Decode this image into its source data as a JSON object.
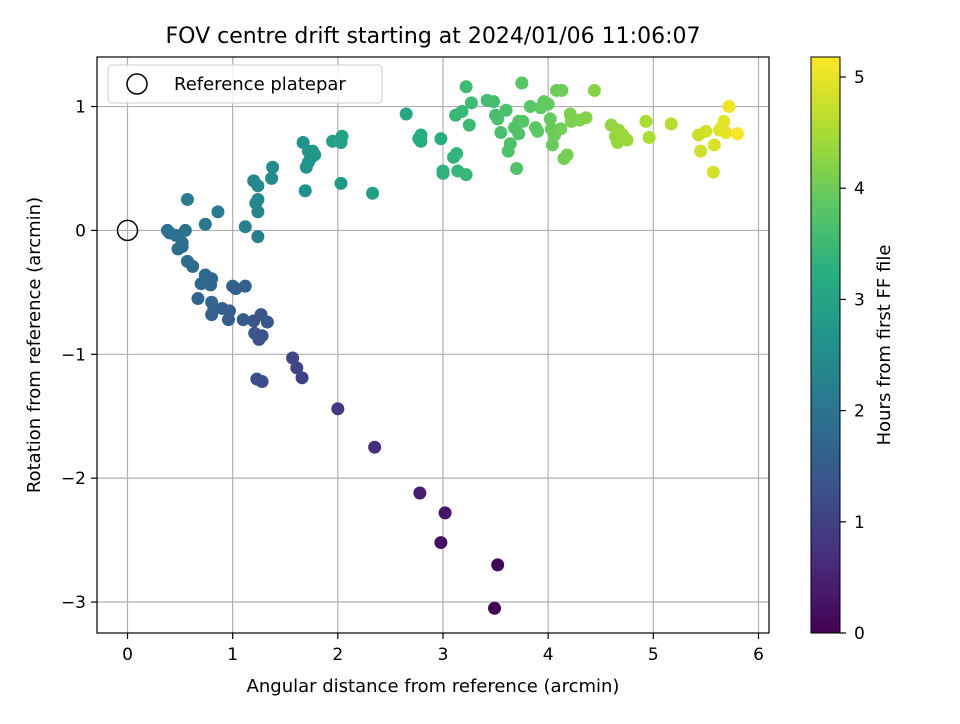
{
  "chart_data": {
    "type": "scatter",
    "title": "FOV centre drift starting at 2024/01/06 11:06:07",
    "xlabel": "Angular distance from reference (arcmin)",
    "ylabel": "Rotation from reference (arcmin)",
    "xlim": [
      -0.29,
      6.1
    ],
    "ylim": [
      -3.25,
      1.4
    ],
    "xticks": [
      0,
      1,
      2,
      3,
      4,
      5,
      6
    ],
    "yticks": [
      -3,
      -2,
      -1,
      0,
      1
    ],
    "xtick_labels": [
      "0",
      "1",
      "2",
      "3",
      "4",
      "5",
      "6"
    ],
    "ytick_labels": [
      "−3",
      "−2",
      "−1",
      "0",
      "1"
    ],
    "grid": true,
    "legend": {
      "placement": "top-left",
      "entries": [
        "Reference platepar"
      ]
    },
    "colormap": "viridis",
    "colorbar": {
      "label": "Hours from first FF file",
      "range": [
        0,
        5.18
      ],
      "ticks": [
        0,
        1,
        2,
        3,
        4,
        5
      ],
      "tick_labels": [
        "0",
        "1",
        "2",
        "3",
        "4",
        "5"
      ]
    },
    "reference_point": {
      "x": 0,
      "y": 0,
      "style": "hollow-circle",
      "name": "Reference platepar"
    },
    "points": [
      {
        "x": 3.49,
        "y": -3.05,
        "c": 0.0
      },
      {
        "x": 3.52,
        "y": -2.7,
        "c": 0.1
      },
      {
        "x": 2.98,
        "y": -2.52,
        "c": 0.22
      },
      {
        "x": 3.02,
        "y": -2.28,
        "c": 0.3
      },
      {
        "x": 2.78,
        "y": -2.12,
        "c": 0.45
      },
      {
        "x": 2.35,
        "y": -1.75,
        "c": 0.7
      },
      {
        "x": 2.0,
        "y": -1.44,
        "c": 0.85
      },
      {
        "x": 1.66,
        "y": -1.19,
        "c": 1.0
      },
      {
        "x": 1.61,
        "y": -1.11,
        "c": 1.05
      },
      {
        "x": 1.57,
        "y": -1.03,
        "c": 1.1
      },
      {
        "x": 1.23,
        "y": -1.2,
        "c": 1.2
      },
      {
        "x": 1.28,
        "y": -1.22,
        "c": 1.22
      },
      {
        "x": 1.25,
        "y": -0.88,
        "c": 1.3
      },
      {
        "x": 1.28,
        "y": -0.85,
        "c": 1.32
      },
      {
        "x": 1.21,
        "y": -0.83,
        "c": 1.35
      },
      {
        "x": 1.33,
        "y": -0.74,
        "c": 1.38
      },
      {
        "x": 1.27,
        "y": -0.68,
        "c": 1.4
      },
      {
        "x": 1.2,
        "y": -0.73,
        "c": 1.42
      },
      {
        "x": 1.1,
        "y": -0.72,
        "c": 1.45
      },
      {
        "x": 0.96,
        "y": -0.72,
        "c": 1.5
      },
      {
        "x": 0.97,
        "y": -0.65,
        "c": 1.52
      },
      {
        "x": 0.9,
        "y": -0.63,
        "c": 1.55
      },
      {
        "x": 1.12,
        "y": -0.45,
        "c": 1.57
      },
      {
        "x": 1.03,
        "y": -0.47,
        "c": 1.58
      },
      {
        "x": 1.0,
        "y": -0.45,
        "c": 1.6
      },
      {
        "x": 0.8,
        "y": -0.68,
        "c": 1.62
      },
      {
        "x": 0.82,
        "y": -0.64,
        "c": 1.63
      },
      {
        "x": 0.8,
        "y": -0.58,
        "c": 1.65
      },
      {
        "x": 0.67,
        "y": -0.55,
        "c": 1.67
      },
      {
        "x": 0.79,
        "y": -0.44,
        "c": 1.7
      },
      {
        "x": 0.74,
        "y": -0.4,
        "c": 1.72
      },
      {
        "x": 0.8,
        "y": -0.39,
        "c": 1.74
      },
      {
        "x": 0.74,
        "y": -0.36,
        "c": 1.76
      },
      {
        "x": 0.7,
        "y": -0.43,
        "c": 1.77
      },
      {
        "x": 0.62,
        "y": -0.29,
        "c": 1.8
      },
      {
        "x": 0.57,
        "y": -0.25,
        "c": 1.82
      },
      {
        "x": 0.52,
        "y": -0.13,
        "c": 1.85
      },
      {
        "x": 0.48,
        "y": -0.15,
        "c": 1.87
      },
      {
        "x": 0.52,
        "y": -0.1,
        "c": 1.89
      },
      {
        "x": 0.4,
        "y": -0.02,
        "c": 1.9
      },
      {
        "x": 0.38,
        "y": 0.0,
        "c": 1.92
      },
      {
        "x": 0.46,
        "y": -0.04,
        "c": 1.94
      },
      {
        "x": 0.55,
        "y": 0.0,
        "c": 1.96
      },
      {
        "x": 0.74,
        "y": 0.05,
        "c": 2.05
      },
      {
        "x": 0.86,
        "y": 0.15,
        "c": 2.1
      },
      {
        "x": 0.57,
        "y": 0.25,
        "c": 2.15
      },
      {
        "x": 1.24,
        "y": -0.05,
        "c": 2.2
      },
      {
        "x": 1.12,
        "y": 0.03,
        "c": 2.25
      },
      {
        "x": 1.24,
        "y": 0.15,
        "c": 2.32
      },
      {
        "x": 1.22,
        "y": 0.22,
        "c": 2.34
      },
      {
        "x": 1.24,
        "y": 0.25,
        "c": 2.36
      },
      {
        "x": 1.2,
        "y": 0.4,
        "c": 2.4
      },
      {
        "x": 1.24,
        "y": 0.36,
        "c": 2.42
      },
      {
        "x": 1.37,
        "y": 0.42,
        "c": 2.45
      },
      {
        "x": 1.38,
        "y": 0.51,
        "c": 2.5
      },
      {
        "x": 1.69,
        "y": 0.32,
        "c": 2.6
      },
      {
        "x": 1.67,
        "y": 0.71,
        "c": 2.62
      },
      {
        "x": 1.7,
        "y": 0.51,
        "c": 2.65
      },
      {
        "x": 1.72,
        "y": 0.55,
        "c": 2.67
      },
      {
        "x": 1.74,
        "y": 0.58,
        "c": 2.69
      },
      {
        "x": 1.78,
        "y": 0.61,
        "c": 2.7
      },
      {
        "x": 1.76,
        "y": 0.64,
        "c": 2.72
      },
      {
        "x": 1.72,
        "y": 0.64,
        "c": 2.73
      },
      {
        "x": 2.03,
        "y": 0.38,
        "c": 2.78
      },
      {
        "x": 2.33,
        "y": 0.3,
        "c": 2.85
      },
      {
        "x": 1.95,
        "y": 0.72,
        "c": 2.9
      },
      {
        "x": 2.02,
        "y": 0.73,
        "c": 2.92
      },
      {
        "x": 2.04,
        "y": 0.76,
        "c": 2.94
      },
      {
        "x": 2.03,
        "y": 0.71,
        "c": 2.96
      },
      {
        "x": 2.65,
        "y": 0.94,
        "c": 3.05
      },
      {
        "x": 2.77,
        "y": 0.74,
        "c": 3.15
      },
      {
        "x": 2.79,
        "y": 0.72,
        "c": 3.17
      },
      {
        "x": 2.79,
        "y": 0.77,
        "c": 3.19
      },
      {
        "x": 2.98,
        "y": 0.74,
        "c": 3.25
      },
      {
        "x": 3.0,
        "y": 0.48,
        "c": 3.3
      },
      {
        "x": 3.0,
        "y": 0.46,
        "c": 3.32
      },
      {
        "x": 3.1,
        "y": 0.59,
        "c": 3.35
      },
      {
        "x": 3.13,
        "y": 0.62,
        "c": 3.37
      },
      {
        "x": 3.14,
        "y": 0.48,
        "c": 3.4
      },
      {
        "x": 3.22,
        "y": 0.45,
        "c": 3.42
      },
      {
        "x": 3.12,
        "y": 0.93,
        "c": 3.45
      },
      {
        "x": 3.18,
        "y": 0.96,
        "c": 3.47
      },
      {
        "x": 3.25,
        "y": 0.85,
        "c": 3.5
      },
      {
        "x": 3.22,
        "y": 1.16,
        "c": 3.52
      },
      {
        "x": 3.27,
        "y": 1.03,
        "c": 3.54
      },
      {
        "x": 3.42,
        "y": 1.05,
        "c": 3.56
      },
      {
        "x": 3.48,
        "y": 1.04,
        "c": 3.58
      },
      {
        "x": 3.5,
        "y": 0.93,
        "c": 3.6
      },
      {
        "x": 3.52,
        "y": 0.9,
        "c": 3.62
      },
      {
        "x": 3.55,
        "y": 0.79,
        "c": 3.65
      },
      {
        "x": 3.6,
        "y": 0.97,
        "c": 3.67
      },
      {
        "x": 3.62,
        "y": 0.64,
        "c": 3.69
      },
      {
        "x": 3.64,
        "y": 0.7,
        "c": 3.7
      },
      {
        "x": 3.7,
        "y": 0.5,
        "c": 3.72
      },
      {
        "x": 3.72,
        "y": 0.78,
        "c": 3.74
      },
      {
        "x": 3.68,
        "y": 0.83,
        "c": 3.75
      },
      {
        "x": 3.72,
        "y": 0.88,
        "c": 3.77
      },
      {
        "x": 3.76,
        "y": 0.88,
        "c": 3.79
      },
      {
        "x": 3.75,
        "y": 1.19,
        "c": 3.8
      },
      {
        "x": 3.83,
        "y": 1.0,
        "c": 3.82
      },
      {
        "x": 3.88,
        "y": 0.83,
        "c": 3.84
      },
      {
        "x": 3.9,
        "y": 0.8,
        "c": 3.86
      },
      {
        "x": 3.93,
        "y": 0.99,
        "c": 3.88
      },
      {
        "x": 3.96,
        "y": 1.04,
        "c": 3.9
      },
      {
        "x": 4.0,
        "y": 1.02,
        "c": 3.92
      },
      {
        "x": 4.02,
        "y": 0.9,
        "c": 3.94
      },
      {
        "x": 4.03,
        "y": 0.82,
        "c": 3.96
      },
      {
        "x": 4.04,
        "y": 0.69,
        "c": 3.97
      },
      {
        "x": 4.06,
        "y": 0.77,
        "c": 3.99
      },
      {
        "x": 4.08,
        "y": 1.13,
        "c": 4.0
      },
      {
        "x": 4.13,
        "y": 1.13,
        "c": 4.02
      },
      {
        "x": 4.12,
        "y": 0.82,
        "c": 4.04
      },
      {
        "x": 4.15,
        "y": 0.58,
        "c": 4.06
      },
      {
        "x": 4.18,
        "y": 0.61,
        "c": 4.08
      },
      {
        "x": 4.22,
        "y": 0.88,
        "c": 4.1
      },
      {
        "x": 4.21,
        "y": 0.94,
        "c": 4.12
      },
      {
        "x": 4.24,
        "y": 0.89,
        "c": 4.14
      },
      {
        "x": 4.3,
        "y": 0.89,
        "c": 4.16
      },
      {
        "x": 4.36,
        "y": 0.91,
        "c": 4.18
      },
      {
        "x": 4.44,
        "y": 1.13,
        "c": 4.22
      },
      {
        "x": 4.6,
        "y": 0.85,
        "c": 4.3
      },
      {
        "x": 4.64,
        "y": 0.76,
        "c": 4.32
      },
      {
        "x": 4.66,
        "y": 0.71,
        "c": 4.34
      },
      {
        "x": 4.67,
        "y": 0.81,
        "c": 4.36
      },
      {
        "x": 4.71,
        "y": 0.77,
        "c": 4.38
      },
      {
        "x": 4.75,
        "y": 0.73,
        "c": 4.4
      },
      {
        "x": 4.93,
        "y": 0.88,
        "c": 4.5
      },
      {
        "x": 4.96,
        "y": 0.75,
        "c": 4.52
      },
      {
        "x": 5.17,
        "y": 0.86,
        "c": 4.6
      },
      {
        "x": 5.43,
        "y": 0.77,
        "c": 4.75
      },
      {
        "x": 5.45,
        "y": 0.64,
        "c": 4.78
      },
      {
        "x": 5.5,
        "y": 0.8,
        "c": 4.8
      },
      {
        "x": 5.57,
        "y": 0.47,
        "c": 4.85
      },
      {
        "x": 5.58,
        "y": 0.69,
        "c": 4.88
      },
      {
        "x": 5.63,
        "y": 0.81,
        "c": 4.92
      },
      {
        "x": 5.65,
        "y": 0.83,
        "c": 4.95
      },
      {
        "x": 5.67,
        "y": 0.88,
        "c": 4.98
      },
      {
        "x": 5.69,
        "y": 0.79,
        "c": 5.0
      },
      {
        "x": 5.72,
        "y": 1.0,
        "c": 5.05
      },
      {
        "x": 5.8,
        "y": 0.78,
        "c": 5.12
      }
    ]
  }
}
